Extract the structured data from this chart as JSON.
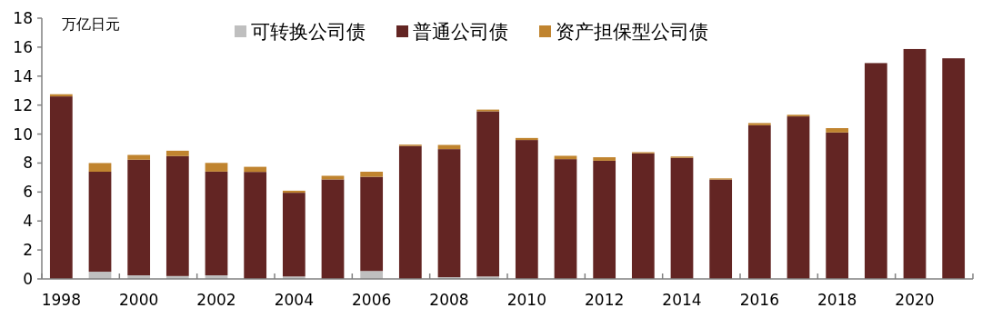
{
  "chart_data": {
    "type": "bar",
    "stacked": true,
    "ylabel": "万亿日元",
    "legend": "top",
    "categories": [
      "1998",
      null,
      "2000",
      null,
      "2002",
      null,
      "2004",
      null,
      "2006",
      null,
      "2008",
      null,
      "2010",
      null,
      "2012",
      null,
      "2014",
      null,
      "2016",
      null,
      "2018",
      null,
      "2020",
      null
    ],
    "ylim": [
      0,
      18
    ],
    "yticks": [
      0,
      2,
      4,
      6,
      8,
      10,
      12,
      14,
      16,
      18
    ],
    "series": [
      {
        "name": "可转换公司债",
        "color": "#bfbfbf",
        "values": [
          null,
          0.5,
          0.25,
          0.2,
          0.25,
          null,
          0.17,
          null,
          0.55,
          null,
          0.12,
          0.17,
          null,
          null,
          null,
          null,
          null,
          null,
          null,
          null,
          null,
          null,
          null,
          null
        ]
      },
      {
        "name": "普通公司债",
        "color": "#632523",
        "values": [
          12.6,
          6.9,
          7.98,
          8.28,
          7.16,
          7.39,
          5.78,
          6.87,
          6.5,
          9.18,
          8.84,
          11.4,
          9.59,
          8.27,
          8.16,
          8.67,
          8.36,
          6.86,
          10.61,
          11.22,
          10.11,
          14.9,
          15.87,
          15.23
        ]
      },
      {
        "name": "资产担保型公司债",
        "color": "#c0842f",
        "values": [
          0.15,
          0.6,
          0.33,
          0.37,
          0.6,
          0.35,
          0.14,
          0.25,
          0.35,
          0.09,
          0.29,
          0.12,
          0.14,
          0.23,
          0.24,
          0.08,
          0.09,
          0.08,
          0.15,
          0.11,
          0.3,
          0,
          0,
          0
        ]
      }
    ]
  }
}
